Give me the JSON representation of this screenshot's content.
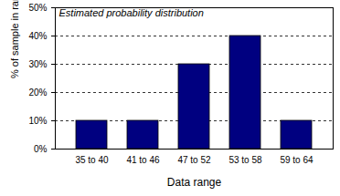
{
  "chart_data": {
    "type": "bar",
    "title": "Estimated probability distribution",
    "x_label": "Data range",
    "y_label": "% of sample in range",
    "categories": [
      "35 to 40",
      "41 to 46",
      "47 to 52",
      "53 to 58",
      "59 to 64"
    ],
    "values": [
      10,
      10,
      30,
      40,
      10
    ],
    "color": "#000080",
    "ylim": [
      0,
      50
    ],
    "yticks": [
      {
        "value": 0,
        "label": "0%"
      },
      {
        "value": 10,
        "label": "10%"
      },
      {
        "value": 20,
        "label": "20%"
      },
      {
        "value": 30,
        "label": "30%"
      },
      {
        "value": 40,
        "label": "40%"
      },
      {
        "value": 50,
        "label": "50%"
      }
    ],
    "grid": true
  }
}
